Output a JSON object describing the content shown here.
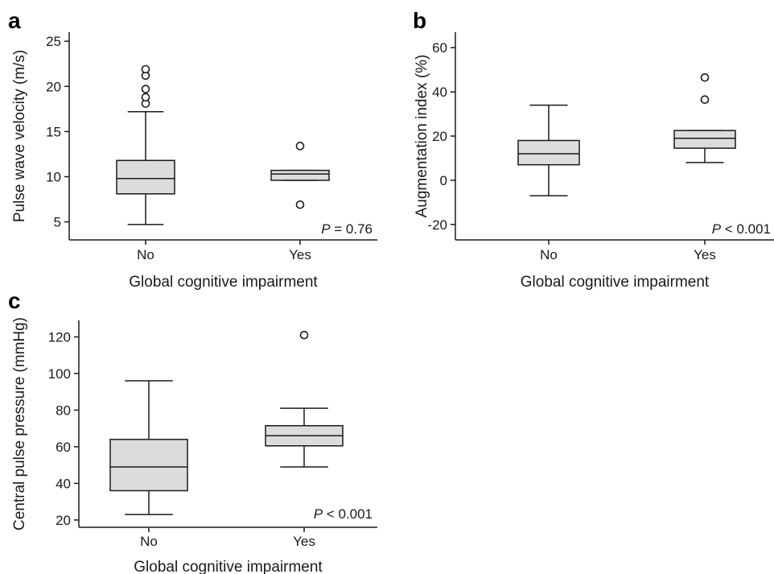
{
  "colors": {
    "box_fill": "#dcdcdc",
    "line": "#1a1a1a",
    "background": "#ffffff"
  },
  "chart_data": [
    {
      "panel": "a",
      "type": "box",
      "xlabel": "Global cognitive impairment",
      "ylabel": "Pulse wave velocity (m/s)",
      "ylim": [
        3.0,
        26.0
      ],
      "yticks": [
        5,
        10,
        15,
        20,
        25
      ],
      "categories": [
        "No",
        "Yes"
      ],
      "boxes": [
        {
          "category": "No",
          "whisker_low": 4.7,
          "q1": 8.1,
          "median": 9.8,
          "q3": 11.8,
          "whisker_high": 17.2,
          "outliers": [
            18.1,
            18.8,
            19.7,
            21.2,
            21.9
          ]
        },
        {
          "category": "Yes",
          "whisker_low": 9.6,
          "q1": 9.6,
          "median": 10.3,
          "q3": 10.7,
          "whisker_high": 10.7,
          "outliers": [
            6.9,
            13.4
          ]
        }
      ],
      "annotation": {
        "p_symbol": "P",
        "p_text": " = 0.76"
      },
      "grid": false
    },
    {
      "panel": "b",
      "type": "box",
      "xlabel": "Global cognitive impairment",
      "ylabel": "Augmentation index (%)",
      "ylim": [
        -27,
        67
      ],
      "yticks": [
        -20,
        0,
        20,
        40,
        60
      ],
      "categories": [
        "No",
        "Yes"
      ],
      "boxes": [
        {
          "category": "No",
          "whisker_low": -7,
          "q1": 7,
          "median": 12,
          "q3": 18,
          "whisker_high": 34,
          "outliers": []
        },
        {
          "category": "Yes",
          "whisker_low": 8,
          "q1": 14.5,
          "median": 19,
          "q3": 22.5,
          "whisker_high": 22.5,
          "outliers": [
            36.5,
            46.5
          ]
        }
      ],
      "annotation": {
        "p_symbol": "P",
        "p_text": " < 0.001"
      },
      "grid": false
    },
    {
      "panel": "c",
      "type": "box",
      "xlabel": "Global cognitive impairment",
      "ylabel": "Central pulse pressure (mmHg)",
      "ylim": [
        16,
        129
      ],
      "yticks": [
        20,
        40,
        60,
        80,
        100,
        120
      ],
      "categories": [
        "No",
        "Yes"
      ],
      "boxes": [
        {
          "category": "No",
          "whisker_low": 23,
          "q1": 36,
          "median": 49,
          "q3": 64,
          "whisker_high": 96,
          "outliers": []
        },
        {
          "category": "Yes",
          "whisker_low": 49,
          "q1": 60.5,
          "median": 66,
          "q3": 71.5,
          "whisker_high": 81,
          "outliers": [
            121
          ]
        }
      ],
      "annotation": {
        "p_symbol": "P",
        "p_text": " < 0.001"
      },
      "grid": false
    }
  ]
}
